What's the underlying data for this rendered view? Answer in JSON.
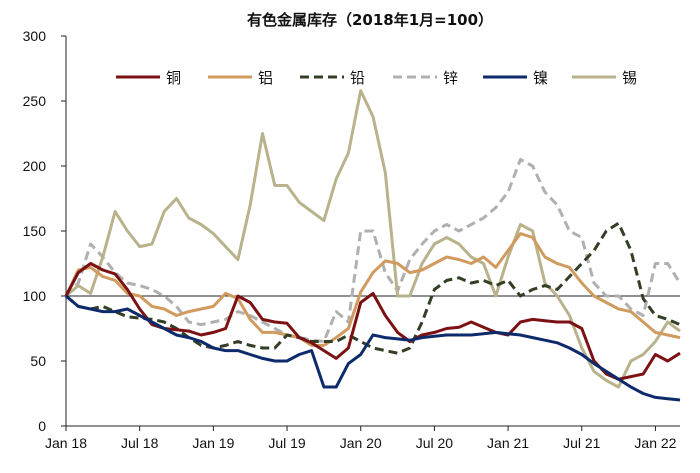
{
  "chart_data": {
    "type": "line",
    "title": "有色金属库存（2018年1月=100）",
    "xlabel": "",
    "ylabel": "",
    "ylim": [
      0,
      300
    ],
    "yticks": [
      0,
      50,
      100,
      150,
      200,
      250,
      300
    ],
    "x_start": "Jan 18",
    "x_end": "Mar 22",
    "x_points": 51,
    "xticks": [
      {
        "label": "Jan 18",
        "index": 0
      },
      {
        "label": "Jul 18",
        "index": 6
      },
      {
        "label": "Jan 19",
        "index": 12
      },
      {
        "label": "Jul 19",
        "index": 18
      },
      {
        "label": "Jan 20",
        "index": 24
      },
      {
        "label": "Jul 20",
        "index": 30
      },
      {
        "label": "Jan 21",
        "index": 36
      },
      {
        "label": "Jul 21",
        "index": 42
      },
      {
        "label": "Jan 22",
        "index": 48
      }
    ],
    "reference_line": 100,
    "grid": false,
    "legend_position": "top",
    "series": [
      {
        "name": "铜",
        "color": "#7b1113",
        "dash": "solid",
        "values": [
          100,
          118,
          125,
          120,
          117,
          105,
          90,
          78,
          75,
          74,
          73,
          70,
          72,
          75,
          100,
          95,
          82,
          80,
          79,
          68,
          64,
          58,
          52,
          60,
          95,
          102,
          85,
          72,
          65,
          70,
          72,
          75,
          76,
          80,
          76,
          72,
          70,
          80,
          82,
          81,
          80,
          80,
          75,
          50,
          40,
          36,
          38,
          40,
          55,
          50,
          56
        ]
      },
      {
        "name": "铝",
        "color": "#d19a5e",
        "dash": "solid",
        "values": [
          100,
          120,
          122,
          115,
          112,
          102,
          100,
          92,
          90,
          85,
          88,
          90,
          92,
          102,
          98,
          82,
          72,
          72,
          70,
          68,
          62,
          62,
          68,
          75,
          103,
          118,
          127,
          125,
          118,
          120,
          125,
          130,
          128,
          125,
          130,
          122,
          135,
          148,
          145,
          130,
          125,
          122,
          110,
          100,
          95,
          90,
          88,
          80,
          72,
          70,
          68
        ]
      },
      {
        "name": "铅",
        "color": "#333f25",
        "dash": "dashed",
        "values": [
          100,
          92,
          90,
          92,
          88,
          84,
          83,
          82,
          80,
          75,
          68,
          62,
          60,
          62,
          65,
          62,
          60,
          60,
          70,
          68,
          65,
          65,
          65,
          70,
          65,
          60,
          58,
          56,
          60,
          80,
          105,
          112,
          114,
          110,
          112,
          108,
          112,
          100,
          105,
          108,
          105,
          115,
          125,
          135,
          150,
          156,
          135,
          98,
          85,
          82,
          78
        ]
      },
      {
        "name": "锌",
        "color": "#b0b0b0",
        "dash": "dashed",
        "values": [
          100,
          110,
          140,
          130,
          118,
          110,
          108,
          105,
          100,
          92,
          80,
          78,
          80,
          82,
          88,
          85,
          80,
          75,
          70,
          68,
          66,
          65,
          88,
          80,
          150,
          150,
          118,
          104,
          128,
          140,
          150,
          155,
          150,
          155,
          160,
          168,
          180,
          205,
          200,
          180,
          170,
          150,
          145,
          110,
          100,
          100,
          90,
          85,
          125,
          125,
          110
        ]
      },
      {
        "name": "镍",
        "color": "#0d2b6b",
        "dash": "solid",
        "values": [
          100,
          92,
          90,
          88,
          88,
          90,
          85,
          80,
          75,
          70,
          68,
          65,
          60,
          58,
          58,
          55,
          52,
          50,
          50,
          55,
          58,
          30,
          30,
          48,
          55,
          70,
          68,
          67,
          66,
          68,
          69,
          70,
          70,
          70,
          71,
          72,
          71,
          70,
          68,
          66,
          64,
          60,
          55,
          48,
          42,
          36,
          30,
          25,
          22,
          21,
          20
        ]
      },
      {
        "name": "锡",
        "color": "#b8b38c",
        "dash": "solid",
        "values": [
          100,
          108,
          102,
          130,
          165,
          150,
          138,
          140,
          165,
          175,
          160,
          155,
          148,
          138,
          128,
          170,
          225,
          185,
          185,
          172,
          165,
          158,
          190,
          210,
          258,
          238,
          195,
          100,
          100,
          125,
          140,
          145,
          140,
          130,
          125,
          100,
          130,
          155,
          150,
          110,
          100,
          85,
          60,
          42,
          35,
          30,
          50,
          55,
          65,
          80,
          73
        ]
      }
    ]
  }
}
